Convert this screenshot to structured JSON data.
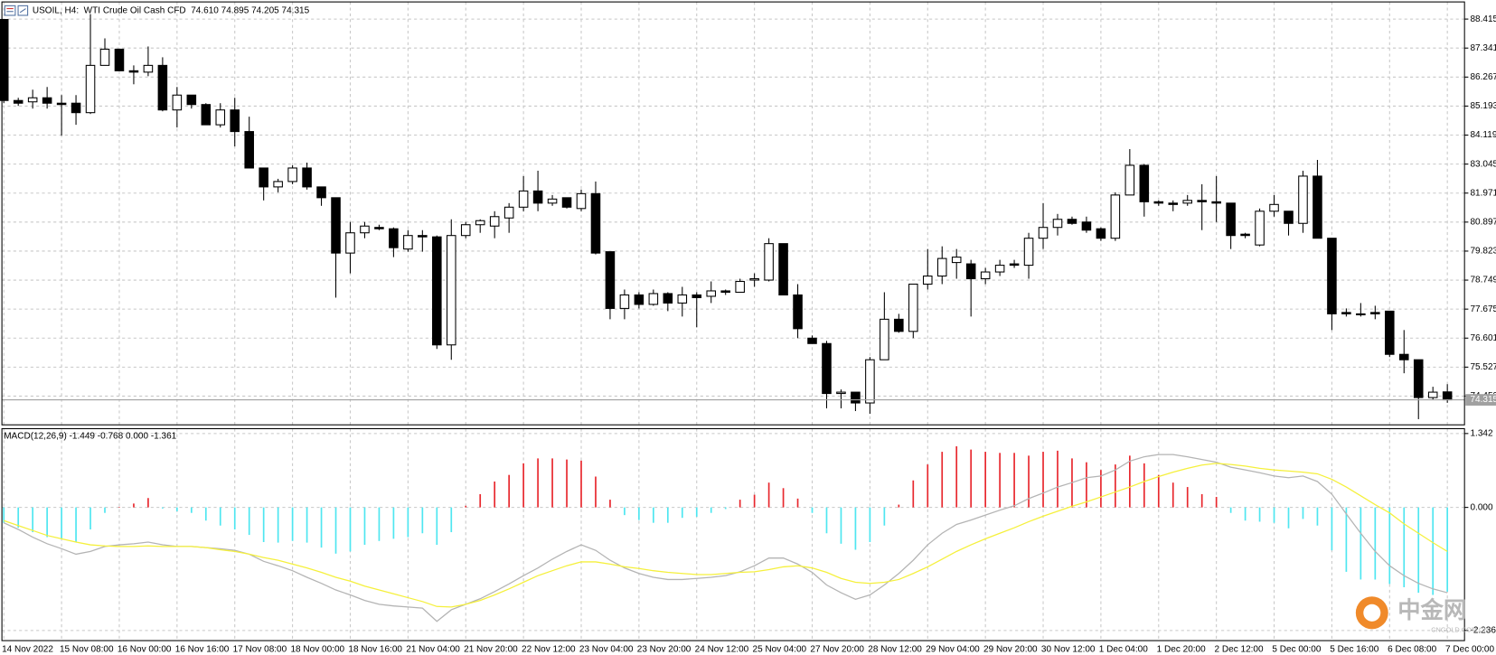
{
  "chart_data": [
    {
      "type": "candlestick",
      "title": "USOIL, H4:  WTI Crude Oil Cash CFD  74.610 74.895 74.205 74.315",
      "categories": [
        "14 Nov 2022",
        null,
        null,
        null,
        "15 Nov 08:00",
        null,
        null,
        null,
        "16 Nov 00:00",
        null,
        null,
        null,
        "16 Nov 16:00",
        null,
        null,
        null,
        "17 Nov 08:00",
        null,
        null,
        null,
        "18 Nov 00:00",
        null,
        null,
        null,
        "18 Nov 16:00",
        null,
        null,
        null,
        "21 Nov 04:00",
        null,
        null,
        null,
        "21 Nov 20:00",
        null,
        null,
        null,
        "22 Nov 12:00",
        null,
        null,
        null,
        "23 Nov 04:00",
        null,
        null,
        null,
        "23 Nov 20:00",
        null,
        null,
        null,
        "24 Nov 12:00",
        null,
        null,
        null,
        "25 Nov 04:00",
        null,
        null,
        null,
        "27 Nov 20:00",
        null,
        null,
        null,
        "28 Nov 12:00",
        null,
        null,
        null,
        "29 Nov 04:00",
        null,
        null,
        null,
        "29 Nov 20:00",
        null,
        null,
        null,
        "30 Nov 12:00",
        null,
        null,
        null,
        "1 Dec 04:00",
        null,
        null,
        null,
        "1 Dec 20:00",
        null,
        null,
        null,
        "2 Dec 12:00",
        null,
        null,
        null,
        "5 Dec 00:00",
        null,
        null,
        null,
        "5 Dec 16:00",
        null,
        null,
        null,
        "6 Dec 08:00",
        null,
        null,
        null,
        "7 Dec 00:00"
      ],
      "open": [
        88.4,
        85.4,
        85.35,
        85.5,
        85.3,
        85.3,
        84.95,
        86.7,
        87.3,
        86.5,
        86.45,
        86.7,
        85.05,
        85.6,
        85.25,
        84.5,
        85.05,
        84.25,
        82.9,
        82.2,
        82.4,
        82.9,
        82.2,
        81.8,
        79.75,
        80.5,
        80.7,
        80.65,
        79.9,
        80.4,
        80.35,
        76.35,
        80.4,
        80.8,
        80.75,
        81.05,
        81.45,
        82.05,
        81.6,
        81.8,
        81.4,
        81.95,
        79.8,
        77.7,
        78.2,
        77.85,
        78.25,
        77.9,
        78.2,
        78.15,
        78.35,
        78.3,
        78.75,
        78.75,
        80.1,
        78.2,
        76.6,
        76.4,
        74.55,
        74.6,
        74.2,
        75.8,
        77.3,
        76.85,
        78.6,
        78.9,
        79.4,
        79.35,
        78.8,
        79.05,
        79.35,
        79.3,
        80.3,
        80.7,
        81.0,
        80.9,
        80.65,
        80.3,
        81.9,
        83.0,
        81.65,
        81.6,
        81.6,
        81.7,
        81.65,
        81.6,
        80.45,
        80.05,
        81.3,
        81.3,
        80.85,
        82.6,
        80.3,
        77.55,
        77.5,
        77.55,
        77.6,
        76.0,
        75.8,
        74.4,
        74.61
      ],
      "high": [
        88.4,
        85.5,
        85.8,
        85.9,
        85.6,
        85.6,
        88.6,
        87.7,
        87.3,
        86.7,
        87.4,
        87.0,
        85.9,
        85.6,
        85.3,
        85.3,
        85.5,
        84.8,
        82.9,
        82.5,
        83.0,
        83.1,
        82.2,
        81.8,
        80.9,
        80.9,
        80.8,
        80.7,
        80.6,
        80.6,
        80.4,
        81.0,
        80.9,
        81.0,
        81.3,
        81.6,
        82.6,
        82.8,
        81.9,
        81.8,
        82.1,
        82.4,
        79.8,
        78.4,
        78.3,
        78.4,
        78.3,
        78.5,
        78.3,
        78.7,
        78.4,
        78.8,
        79.0,
        80.3,
        80.1,
        78.6,
        76.7,
        76.5,
        74.7,
        74.6,
        75.9,
        78.3,
        77.5,
        78.6,
        79.9,
        80.0,
        79.9,
        79.5,
        79.2,
        79.5,
        79.5,
        80.5,
        81.6,
        81.2,
        81.1,
        81.1,
        80.7,
        82.0,
        83.6,
        83.05,
        81.7,
        81.7,
        81.9,
        82.3,
        82.6,
        81.6,
        80.5,
        81.4,
        81.9,
        81.3,
        82.8,
        83.2,
        80.3,
        77.7,
        77.9,
        77.8,
        77.6,
        76.9,
        75.8,
        74.8,
        74.895
      ],
      "low": [
        85.3,
        85.2,
        85.1,
        85.1,
        84.1,
        84.5,
        84.9,
        86.7,
        86.5,
        86.0,
        86.3,
        85.0,
        84.4,
        85.1,
        84.5,
        84.4,
        83.7,
        82.9,
        81.7,
        82.0,
        82.3,
        82.1,
        81.5,
        78.1,
        79.0,
        80.3,
        80.6,
        79.6,
        79.8,
        79.8,
        76.2,
        75.8,
        80.3,
        80.5,
        80.3,
        80.5,
        81.3,
        81.3,
        81.5,
        81.4,
        81.3,
        79.7,
        77.3,
        77.3,
        77.7,
        77.8,
        77.6,
        77.4,
        77.0,
        77.9,
        78.2,
        78.3,
        78.5,
        78.7,
        78.2,
        76.6,
        76.4,
        74.0,
        74.0,
        73.9,
        73.8,
        75.8,
        76.8,
        76.6,
        78.4,
        78.6,
        78.8,
        77.4,
        78.6,
        78.9,
        79.2,
        78.8,
        79.9,
        80.4,
        80.8,
        80.5,
        80.2,
        80.2,
        81.9,
        81.1,
        81.5,
        81.3,
        81.5,
        80.6,
        80.9,
        79.9,
        80.3,
        80.0,
        81.1,
        80.4,
        80.5,
        80.3,
        76.9,
        77.4,
        77.4,
        77.3,
        75.9,
        75.3,
        73.6,
        74.3,
        74.205
      ],
      "close": [
        85.4,
        85.3,
        85.5,
        85.3,
        85.25,
        84.95,
        86.7,
        87.3,
        86.5,
        86.45,
        86.7,
        85.05,
        85.6,
        85.25,
        84.5,
        85.05,
        84.25,
        82.9,
        82.2,
        82.4,
        82.9,
        82.2,
        81.8,
        79.75,
        80.5,
        80.75,
        80.65,
        79.95,
        80.4,
        80.35,
        76.35,
        80.4,
        80.8,
        80.95,
        81.1,
        81.45,
        82.05,
        81.6,
        81.75,
        81.45,
        81.95,
        79.75,
        77.7,
        78.2,
        77.85,
        78.25,
        77.9,
        78.2,
        78.1,
        78.35,
        78.3,
        78.7,
        78.8,
        80.1,
        78.2,
        76.95,
        76.4,
        74.55,
        74.6,
        74.2,
        75.8,
        77.3,
        76.85,
        78.6,
        78.9,
        79.55,
        79.6,
        78.8,
        79.05,
        79.3,
        79.3,
        80.3,
        80.7,
        81.0,
        80.85,
        80.6,
        80.3,
        81.9,
        83.0,
        81.65,
        81.6,
        81.55,
        81.7,
        81.65,
        81.6,
        80.4,
        80.4,
        81.3,
        81.55,
        80.85,
        82.6,
        80.3,
        77.5,
        77.5,
        77.5,
        77.5,
        76.0,
        75.8,
        74.4,
        74.6,
        74.315
      ],
      "up_color": "#ffffff",
      "down_color": "#000000",
      "current_price_color": "#a0a0a0",
      "ylim": [
        73.39,
        89.05
      ],
      "yticks": [
        88.415,
        87.341,
        86.267,
        85.193,
        84.119,
        83.045,
        81.971,
        80.897,
        79.823,
        78.749,
        77.675,
        76.601,
        75.527,
        74.453
      ],
      "grid": true
    },
    {
      "type": "macd",
      "title": "MACD(12,26,9) -1.449 -0.768 0.000 -1.361",
      "values": [
        -0.28,
        -0.37,
        -0.45,
        -0.54,
        -0.57,
        -0.63,
        -0.4,
        -0.1,
        0.01,
        0.07,
        0.17,
        -0.02,
        -0.07,
        -0.1,
        -0.24,
        -0.33,
        -0.4,
        -0.5,
        -0.63,
        -0.64,
        -0.61,
        -0.64,
        -0.73,
        -0.84,
        -0.8,
        -0.68,
        -0.61,
        -0.57,
        -0.54,
        -0.47,
        -0.68,
        -0.45,
        0.03,
        0.24,
        0.47,
        0.59,
        0.8,
        0.89,
        0.89,
        0.87,
        0.85,
        0.56,
        0.14,
        -0.14,
        -0.23,
        -0.28,
        -0.28,
        -0.19,
        -0.17,
        -0.1,
        -0.03,
        0.14,
        0.23,
        0.45,
        0.35,
        0.16,
        -0.1,
        -0.47,
        -0.66,
        -0.77,
        -0.63,
        -0.33,
        0.05,
        0.49,
        0.78,
        1.01,
        1.11,
        1.05,
        1.01,
        0.99,
        0.99,
        0.94,
        1.01,
        1.03,
        0.89,
        0.82,
        0.68,
        0.78,
        0.94,
        0.8,
        0.59,
        0.45,
        0.37,
        0.24,
        0.19,
        -0.1,
        -0.24,
        -0.26,
        -0.28,
        -0.38,
        -0.21,
        -0.33,
        -0.78,
        -1.17,
        -1.31,
        -1.31,
        -1.39,
        -1.45,
        -1.55,
        -1.59,
        -1.53
      ],
      "positive_color": "#e8282e",
      "negative_color": "#4fe6f0",
      "series": [
        {
          "color": "#b4b4b4",
          "values": [
            -0.28,
            -0.4,
            -0.54,
            -0.66,
            -0.75,
            -0.85,
            -0.8,
            -0.71,
            -0.68,
            -0.66,
            -0.63,
            -0.68,
            -0.71,
            -0.71,
            -0.73,
            -0.75,
            -0.78,
            -0.85,
            -0.98,
            -1.06,
            -1.15,
            -1.27,
            -1.38,
            -1.5,
            -1.59,
            -1.69,
            -1.76,
            -1.79,
            -1.81,
            -1.83,
            -2.07,
            -1.86,
            -1.76,
            -1.66,
            -1.53,
            -1.39,
            -1.24,
            -1.1,
            -0.94,
            -0.8,
            -0.68,
            -0.78,
            -0.96,
            -1.1,
            -1.2,
            -1.27,
            -1.31,
            -1.31,
            -1.29,
            -1.27,
            -1.24,
            -1.17,
            -1.06,
            -0.92,
            -0.92,
            -1.03,
            -1.18,
            -1.41,
            -1.55,
            -1.67,
            -1.59,
            -1.41,
            -1.2,
            -0.96,
            -0.68,
            -0.47,
            -0.31,
            -0.23,
            -0.14,
            -0.05,
            0.03,
            0.16,
            0.26,
            0.37,
            0.45,
            0.54,
            0.57,
            0.68,
            0.84,
            0.92,
            0.96,
            0.96,
            0.92,
            0.87,
            0.82,
            0.73,
            0.68,
            0.63,
            0.57,
            0.54,
            0.57,
            0.47,
            0.24,
            -0.12,
            -0.47,
            -0.8,
            -1.06,
            -1.24,
            -1.38,
            -1.48,
            -1.55
          ]
        },
        {
          "color": "#f5f03c",
          "values": [
            -0.24,
            -0.33,
            -0.42,
            -0.51,
            -0.57,
            -0.63,
            -0.68,
            -0.7,
            -0.71,
            -0.71,
            -0.7,
            -0.71,
            -0.71,
            -0.71,
            -0.73,
            -0.77,
            -0.8,
            -0.85,
            -0.91,
            -0.96,
            -1.03,
            -1.1,
            -1.18,
            -1.27,
            -1.34,
            -1.43,
            -1.5,
            -1.57,
            -1.64,
            -1.71,
            -1.8,
            -1.81,
            -1.76,
            -1.69,
            -1.59,
            -1.48,
            -1.36,
            -1.24,
            -1.15,
            -1.06,
            -0.99,
            -0.99,
            -1.03,
            -1.08,
            -1.11,
            -1.15,
            -1.18,
            -1.2,
            -1.22,
            -1.22,
            -1.2,
            -1.18,
            -1.17,
            -1.13,
            -1.08,
            -1.06,
            -1.1,
            -1.18,
            -1.29,
            -1.36,
            -1.38,
            -1.36,
            -1.31,
            -1.2,
            -1.08,
            -0.94,
            -0.8,
            -0.68,
            -0.57,
            -0.47,
            -0.37,
            -0.26,
            -0.16,
            -0.07,
            0.02,
            0.1,
            0.19,
            0.28,
            0.37,
            0.47,
            0.56,
            0.64,
            0.71,
            0.77,
            0.8,
            0.78,
            0.75,
            0.71,
            0.68,
            0.66,
            0.64,
            0.61,
            0.51,
            0.37,
            0.21,
            0.05,
            -0.1,
            -0.3,
            -0.47,
            -0.64,
            -0.8
          ]
        }
      ],
      "ylim": [
        -2.42,
        1.43
      ],
      "yticks": [
        1.342,
        {
          "value": 0,
          "label": "0.000"
        },
        -2.236
      ],
      "grid": true
    }
  ],
  "watermark": {
    "logo": "中金网",
    "site": "CNGOLD.COM.CN"
  }
}
